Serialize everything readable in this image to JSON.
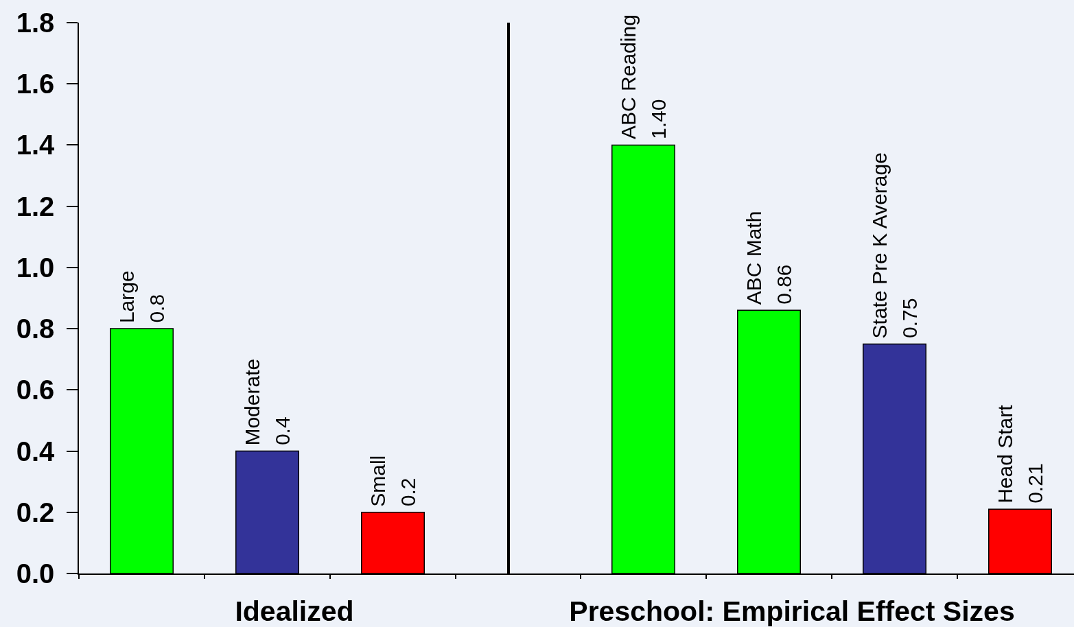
{
  "chart_data": [
    {
      "type": "bar",
      "categories": [
        "Large",
        "Moderate",
        "Small"
      ],
      "values": [
        0.8,
        0.4,
        0.2
      ],
      "colors": [
        "#00ff00",
        "#333399",
        "#ff0000"
      ],
      "value_labels": [
        "0.8",
        "0.4",
        "0.2"
      ],
      "xlabel": "Idealized",
      "ylim": [
        0,
        1.8
      ],
      "yticks": [
        {
          "value": 0,
          "label": "0.0"
        },
        0.2,
        0.4,
        0.6,
        0.8,
        {
          "value": 1,
          "label": "1.0"
        },
        1.2,
        1.4,
        1.6,
        1.8
      ],
      "tick_labels": "y"
    },
    {
      "type": "bar",
      "categories": [
        "ABC Reading",
        "ABC Math",
        "State Pre K Average",
        "Head Start"
      ],
      "values": [
        1.4,
        0.86,
        0.75,
        0.21
      ],
      "colors": [
        "#00ff00",
        "#00ff00",
        "#333399",
        "#ff0000"
      ],
      "value_labels": [
        "1.40",
        "0.86",
        "0.75",
        "0.21"
      ],
      "xlabel": "Preschool: Empirical Effect Sizes",
      "ylim": [
        0,
        1.8
      ],
      "tick_labels": false
    }
  ]
}
